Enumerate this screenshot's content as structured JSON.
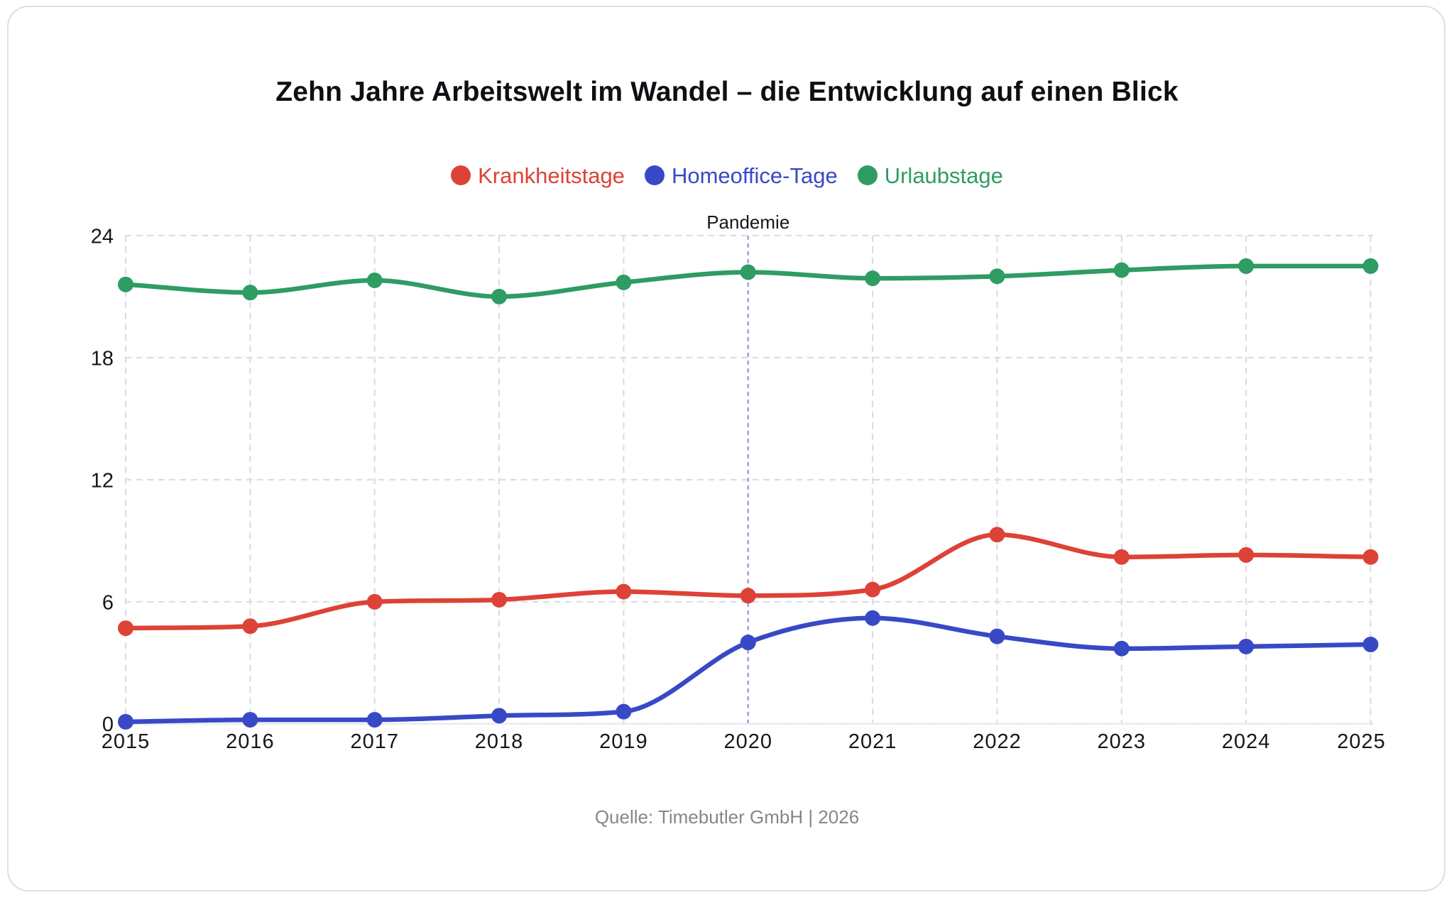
{
  "chart_data": {
    "type": "line",
    "title": "Zehn Jahre Arbeitswelt im Wandel – die Entwicklung auf einen Blick",
    "x": [
      2015,
      2016,
      2017,
      2018,
      2019,
      2020,
      2021,
      2022,
      2023,
      2024,
      2025
    ],
    "series": [
      {
        "name": "Krankheitstage",
        "color": "#dd4237",
        "values": [
          4.7,
          4.8,
          6.0,
          6.1,
          6.5,
          6.3,
          6.6,
          9.3,
          8.2,
          8.3,
          8.2
        ]
      },
      {
        "name": "Homeoffice-Tage",
        "color": "#3849c6",
        "values": [
          0.1,
          0.2,
          0.2,
          0.4,
          0.6,
          4.0,
          5.2,
          4.3,
          3.7,
          3.8,
          3.9
        ]
      },
      {
        "name": "Urlaubstage",
        "color": "#2e9c63",
        "values": [
          21.6,
          21.2,
          21.8,
          21.0,
          21.7,
          22.2,
          21.9,
          22.0,
          22.3,
          22.5,
          22.5
        ]
      }
    ],
    "ylabel": "",
    "xlabel": "",
    "ylim": [
      0,
      24
    ],
    "y_ticks": [
      0,
      6,
      12,
      18,
      24
    ],
    "grid": true,
    "legend_position": "top",
    "annotation": {
      "label": "Pandemie",
      "x": 2020,
      "color": "#9aa2e2"
    },
    "source": "Quelle: Timebutler GmbH | 2026"
  }
}
